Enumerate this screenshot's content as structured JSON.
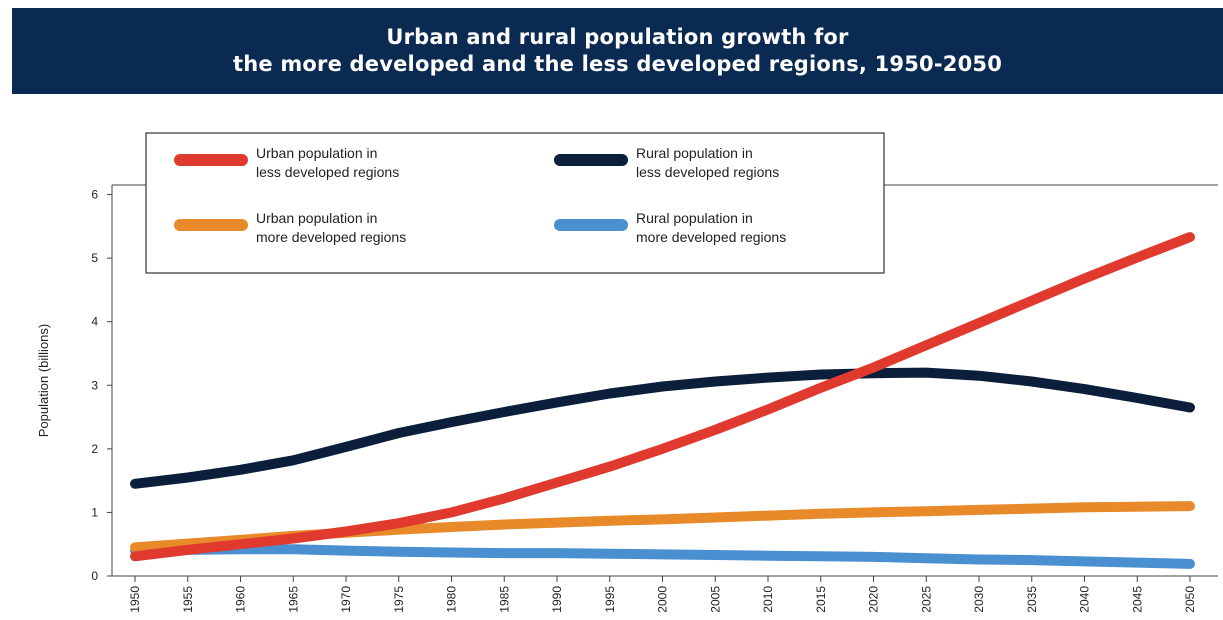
{
  "chart_data": {
    "type": "line",
    "title": [
      "Urban and rural population growth for",
      "the more developed and the less developed regions, 1950-2050"
    ],
    "ylabel": "Population (billions)",
    "xlabel": "",
    "ylim": [
      0,
      6
    ],
    "yticks": [
      "0",
      "1",
      "2",
      "3",
      "4",
      "5",
      "6"
    ],
    "x": [
      "1950",
      "1955",
      "1960",
      "1965",
      "1970",
      "1975",
      "1980",
      "1985",
      "1990",
      "1995",
      "2000",
      "2005",
      "2010",
      "2015",
      "2020",
      "2025",
      "2030",
      "2035",
      "2040",
      "2045",
      "2050"
    ],
    "legend_position": "top-left",
    "series": [
      {
        "name": [
          "Urban population in",
          "less developed regions"
        ],
        "color": "#e03a2e",
        "values": [
          0.31,
          0.41,
          0.5,
          0.59,
          0.7,
          0.83,
          1.0,
          1.22,
          1.47,
          1.72,
          2.0,
          2.3,
          2.62,
          2.96,
          3.28,
          3.63,
          3.98,
          4.33,
          4.68,
          5.01,
          5.33
        ]
      },
      {
        "name": [
          "Rural population in",
          "less developed regions"
        ],
        "color": "#0b1f3a",
        "values": [
          1.45,
          1.55,
          1.67,
          1.82,
          2.03,
          2.25,
          2.42,
          2.58,
          2.73,
          2.87,
          2.98,
          3.06,
          3.12,
          3.17,
          3.19,
          3.2,
          3.15,
          3.06,
          2.94,
          2.8,
          2.65
        ]
      },
      {
        "name": [
          "Urban population in",
          "more developed regions"
        ],
        "color": "#e8892a",
        "values": [
          0.45,
          0.51,
          0.57,
          0.63,
          0.68,
          0.73,
          0.77,
          0.81,
          0.84,
          0.87,
          0.89,
          0.92,
          0.95,
          0.98,
          1.0,
          1.02,
          1.04,
          1.06,
          1.08,
          1.09,
          1.1
        ]
      },
      {
        "name": [
          "Rural population in",
          "more developed regions"
        ],
        "color": "#4a8fd0",
        "values": [
          0.4,
          0.41,
          0.42,
          0.42,
          0.4,
          0.38,
          0.37,
          0.36,
          0.36,
          0.35,
          0.34,
          0.33,
          0.32,
          0.31,
          0.3,
          0.28,
          0.26,
          0.25,
          0.23,
          0.21,
          0.19
        ]
      }
    ]
  }
}
